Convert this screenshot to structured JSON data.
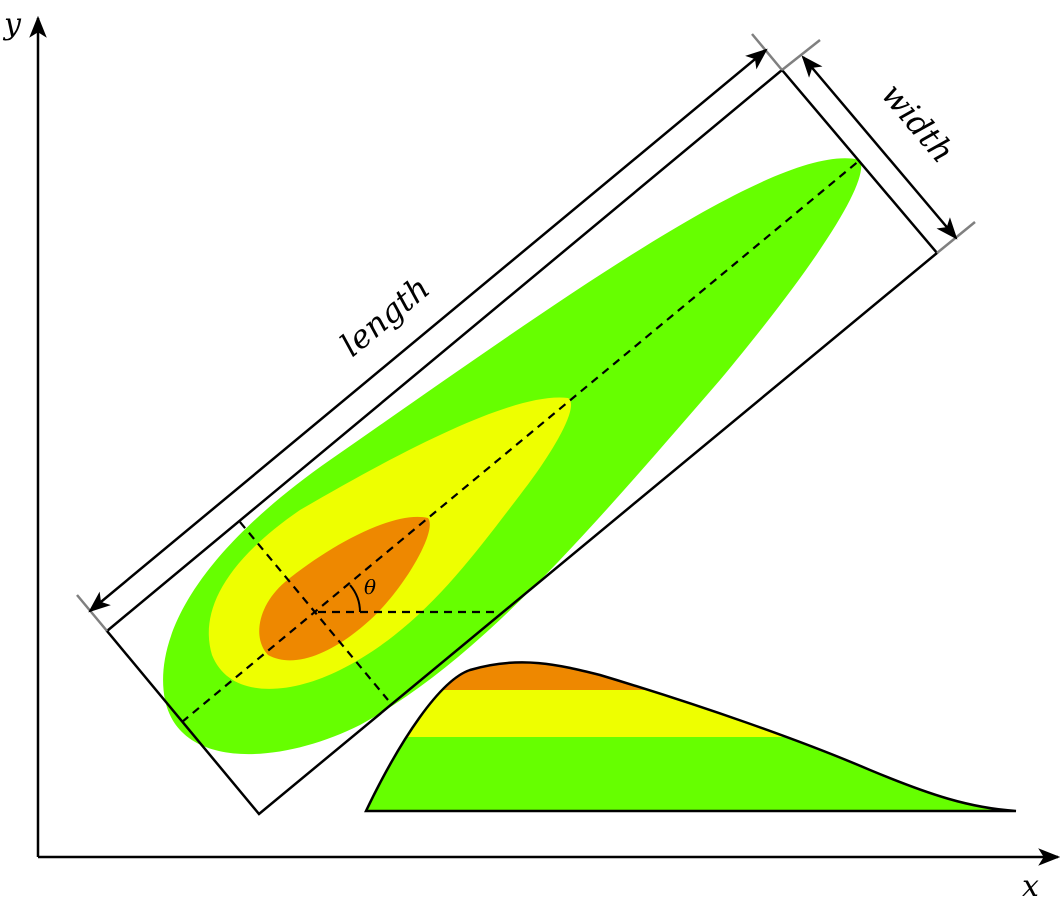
{
  "labels": {
    "x_axis": "x",
    "y_axis": "y",
    "length": "length",
    "width": "width",
    "theta": "θ"
  },
  "colors": {
    "outer_zone": "#66ff00",
    "middle_zone": "#eeff00",
    "inner_zone": "#ee8800",
    "lines": "#000000",
    "extension_lines": "#808080",
    "background": "#ffffff"
  }
}
